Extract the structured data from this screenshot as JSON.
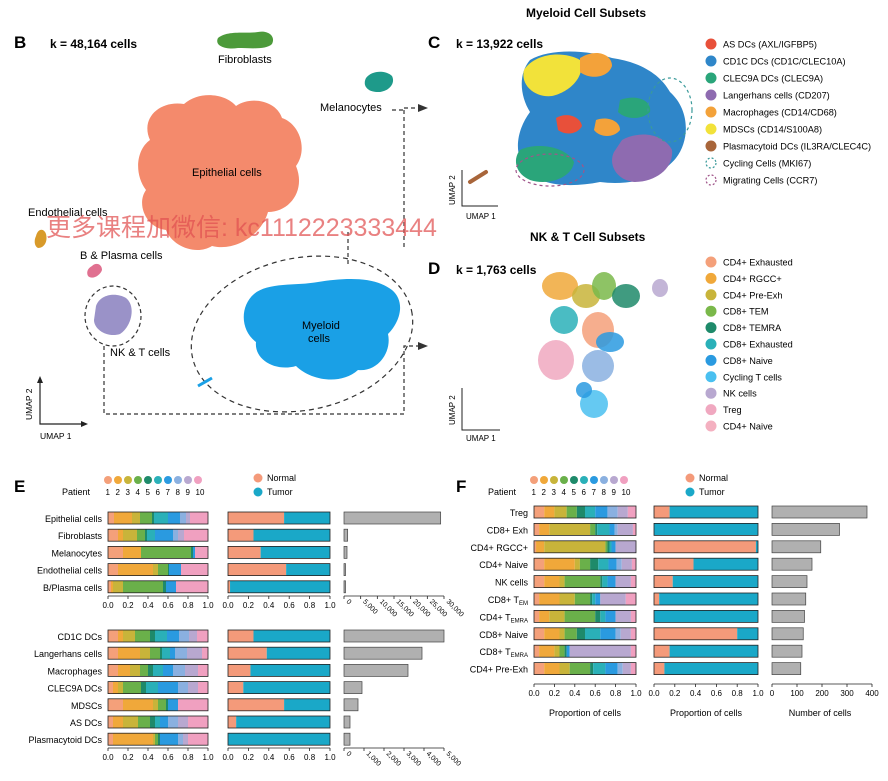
{
  "panel_b": {
    "letter": "B",
    "k_label": "k = 48,164 cells",
    "clusters": [
      "Fibroblasts",
      "Melanocytes",
      "Epithelial cells",
      "Endothelial cells",
      "B & Plasma cells",
      "NK & T cells",
      "Myeloid cells"
    ],
    "axis_x": "UMAP 1",
    "axis_y": "UMAP 2"
  },
  "watermark": "更多课程加微信: kc1112223333444",
  "panel_c": {
    "title": "Myeloid Cell Subsets",
    "letter": "C",
    "k_label": "k = 13,922 cells",
    "axis_x": "UMAP 1",
    "axis_y": "UMAP 2",
    "legend": [
      {
        "label": "AS DCs (AXL/IGFBP5)",
        "color": "#e8503a",
        "style": "fill"
      },
      {
        "label": "CD1C DCs (CD1C/CLEC10A)",
        "color": "#2f86c9",
        "style": "fill"
      },
      {
        "label": "CLEC9A DCs (CLEC9A)",
        "color": "#2aa57a",
        "style": "fill"
      },
      {
        "label": "Langerhans cells (CD207)",
        "color": "#8e6bb0",
        "style": "fill"
      },
      {
        "label": "Macrophages (CD14/CD68)",
        "color": "#f3a23a",
        "style": "fill"
      },
      {
        "label": "MDSCs (CD14/S100A8)",
        "color": "#f2e23a",
        "style": "fill"
      },
      {
        "label": "Plasmacytoid DCs (IL3RA/CLEC4C)",
        "color": "#a8653a",
        "style": "fill"
      },
      {
        "label": "Cycling Cells (MKI67)",
        "color": "#3a9a9a",
        "style": "dash"
      },
      {
        "label": "Migrating Cells (CCR7)",
        "color": "#a0558a",
        "style": "dash"
      }
    ]
  },
  "panel_d": {
    "title": "NK & T Cell Subsets",
    "letter": "D",
    "k_label": "k = 1,763 cells",
    "axis_x": "UMAP 1",
    "axis_y": "UMAP 2",
    "legend": [
      {
        "label": "CD4+ Exhausted",
        "color": "#f4a07a"
      },
      {
        "label": "CD4+ RGCC+",
        "color": "#f0a83a"
      },
      {
        "label": "CD4+ Pre-Exh",
        "color": "#c8b43a"
      },
      {
        "label": "CD8+ TEM",
        "color": "#7ab84a"
      },
      {
        "label": "CD8+ TEMRA",
        "color": "#1e8a6a"
      },
      {
        "label": "CD8+ Exhausted",
        "color": "#2ab0b8"
      },
      {
        "label": "CD8+ Naive",
        "color": "#2a9ae0"
      },
      {
        "label": "Cycling T cells",
        "color": "#4ac0f0"
      },
      {
        "label": "NK cells",
        "color": "#b8a8d0"
      },
      {
        "label": "Treg",
        "color": "#f0a8c0"
      },
      {
        "label": "CD4+ Naive",
        "color": "#f4b0c0"
      }
    ]
  },
  "patient_colors": [
    "#f4a07a",
    "#f0a83a",
    "#c8b43a",
    "#6ab04a",
    "#1e8a6a",
    "#2ab0b8",
    "#2a9ae0",
    "#8ab0e0",
    "#b8a8d0",
    "#f0a0c0"
  ],
  "patient_numbers": [
    "1",
    "2",
    "3",
    "4",
    "5",
    "6",
    "7",
    "8",
    "9",
    "10"
  ],
  "patient_label": "Patient",
  "condition": {
    "normal": "Normal",
    "tumor": "Tumor",
    "normal_color": "#f49a7a",
    "tumor_color": "#1aa8c8"
  },
  "panel_e": {
    "letter": "E",
    "top_rows": [
      {
        "label": "Epithelial cells",
        "patients": [
          0.06,
          0.18,
          0.08,
          0.12,
          0.02,
          0.14,
          0.12,
          0.06,
          0.04,
          0.18
        ],
        "normal": 0.55,
        "count": 29000
      },
      {
        "label": "Fibroblasts",
        "patients": [
          0.1,
          0.05,
          0.14,
          0.08,
          0.02,
          0.08,
          0.18,
          0.05,
          0.06,
          0.24
        ],
        "normal": 0.25,
        "count": 1100
      },
      {
        "label": "Melanocytes",
        "patients": [
          0.15,
          0.18,
          0.0,
          0.5,
          0.02,
          0.0,
          0.02,
          0.0,
          0.0,
          0.13
        ],
        "normal": 0.32,
        "count": 900
      },
      {
        "label": "Endothelial cells",
        "patients": [
          0.1,
          0.35,
          0.05,
          0.1,
          0.01,
          0.0,
          0.12,
          0.0,
          0.0,
          0.27
        ],
        "normal": 0.57,
        "count": 300
      },
      {
        "label": "B/Plasma cells",
        "patients": [
          0.03,
          0.02,
          0.1,
          0.4,
          0.03,
          0.0,
          0.1,
          0.0,
          0.0,
          0.32
        ],
        "normal": 0.02,
        "count": 400
      }
    ],
    "top_axis": [
      "0.0",
      "0.2",
      "0.4",
      "0.6",
      "0.8",
      "1.0"
    ],
    "top_count_ticks": [
      "0",
      "5,000",
      "10,000",
      "15,000",
      "20,000",
      "25,000",
      "30,000"
    ],
    "top_count_max": 30000,
    "bottom_rows": [
      {
        "label": "CD1C DCs",
        "patients": [
          0.1,
          0.05,
          0.12,
          0.15,
          0.05,
          0.12,
          0.12,
          0.1,
          0.08,
          0.11
        ],
        "normal": 0.25,
        "count": 5000
      },
      {
        "label": "Langerhans cells",
        "patients": [
          0.1,
          0.22,
          0.1,
          0.1,
          0.02,
          0.08,
          0.05,
          0.12,
          0.15,
          0.06
        ],
        "normal": 0.38,
        "count": 3900
      },
      {
        "label": "Macrophages",
        "patients": [
          0.1,
          0.12,
          0.1,
          0.08,
          0.05,
          0.1,
          0.1,
          0.12,
          0.13,
          0.1
        ],
        "normal": 0.22,
        "count": 3200
      },
      {
        "label": "CLEC9A DCs",
        "patients": [
          0.05,
          0.05,
          0.05,
          0.18,
          0.05,
          0.12,
          0.2,
          0.1,
          0.1,
          0.1
        ],
        "normal": 0.15,
        "count": 900
      },
      {
        "label": "MDSCs",
        "patients": [
          0.15,
          0.3,
          0.05,
          0.08,
          0.02,
          0.0,
          0.1,
          0.0,
          0.0,
          0.3
        ],
        "normal": 0.55,
        "count": 700
      },
      {
        "label": "AS DCs",
        "patients": [
          0.05,
          0.1,
          0.15,
          0.12,
          0.05,
          0.05,
          0.08,
          0.1,
          0.1,
          0.2
        ],
        "normal": 0.08,
        "count": 300
      },
      {
        "label": "Plasmacytoid DCs",
        "patients": [
          0.05,
          0.4,
          0.02,
          0.03,
          0.02,
          0.0,
          0.18,
          0.05,
          0.05,
          0.2
        ],
        "normal": 0.0,
        "count": 300
      }
    ],
    "bottom_axis": [
      "0.0",
      "0.2",
      "0.4",
      "0.6",
      "0.8",
      "1.0"
    ],
    "bottom_count_ticks": [
      "0",
      "1,000",
      "2,000",
      "3,000",
      "4,000",
      "5,000"
    ],
    "bottom_count_max": 5000
  },
  "panel_f": {
    "letter": "F",
    "rows": [
      {
        "label": "Treg",
        "sub": "",
        "patients": [
          0.1,
          0.1,
          0.12,
          0.1,
          0.08,
          0.1,
          0.12,
          0.1,
          0.1,
          0.08
        ],
        "normal": 0.15,
        "count": 380
      },
      {
        "label": "CD8+ Exh",
        "sub": "",
        "patients": [
          0.05,
          0.1,
          0.4,
          0.05,
          0.02,
          0.12,
          0.05,
          0.03,
          0.15,
          0.03
        ],
        "normal": 0.0,
        "count": 270
      },
      {
        "label": "CD4+ RGCC+",
        "sub": "",
        "patients": [
          0.02,
          0.08,
          0.6,
          0.02,
          0.02,
          0.02,
          0.04,
          0.0,
          0.2,
          0.0
        ],
        "normal": 0.98,
        "count": 195
      },
      {
        "label": "CD4+ Naive",
        "sub": "",
        "patients": [
          0.1,
          0.3,
          0.05,
          0.1,
          0.08,
          0.1,
          0.08,
          0.05,
          0.1,
          0.04
        ],
        "normal": 0.38,
        "count": 160
      },
      {
        "label": "NK cells",
        "sub": "",
        "patients": [
          0.1,
          0.15,
          0.05,
          0.35,
          0.02,
          0.05,
          0.08,
          0.0,
          0.15,
          0.05
        ],
        "normal": 0.18,
        "count": 140
      },
      {
        "label": "CD8+ T",
        "sub": "EM",
        "patients": [
          0.05,
          0.2,
          0.15,
          0.15,
          0.02,
          0.03,
          0.05,
          0.0,
          0.25,
          0.1
        ],
        "normal": 0.05,
        "count": 135
      },
      {
        "label": "CD4+ T",
        "sub": "EMRA",
        "patients": [
          0.05,
          0.1,
          0.15,
          0.3,
          0.05,
          0.05,
          0.1,
          0.0,
          0.15,
          0.05
        ],
        "normal": 0.0,
        "count": 130
      },
      {
        "label": "CD8+ Naive",
        "sub": "",
        "patients": [
          0.1,
          0.15,
          0.05,
          0.12,
          0.08,
          0.15,
          0.15,
          0.05,
          0.1,
          0.05
        ],
        "normal": 0.8,
        "count": 125
      },
      {
        "label": "CD8+ T",
        "sub": "EMRA",
        "patients": [
          0.05,
          0.15,
          0.05,
          0.05,
          0.02,
          0.0,
          0.03,
          0.0,
          0.6,
          0.05
        ],
        "normal": 0.15,
        "count": 120
      },
      {
        "label": "CD4+ Pre-Exh",
        "sub": "",
        "patients": [
          0.1,
          0.15,
          0.1,
          0.2,
          0.03,
          0.12,
          0.12,
          0.05,
          0.08,
          0.05
        ],
        "normal": 0.1,
        "count": 115
      }
    ],
    "axis": [
      "0.0",
      "0.2",
      "0.4",
      "0.6",
      "0.8",
      "1.0"
    ],
    "count_ticks": [
      "0",
      "100",
      "200",
      "300",
      "400"
    ],
    "count_max": 400,
    "xlabel_patient": "Proportion of cells",
    "xlabel_condition": "Proportion of cells",
    "xlabel_count": "Number of cells"
  }
}
